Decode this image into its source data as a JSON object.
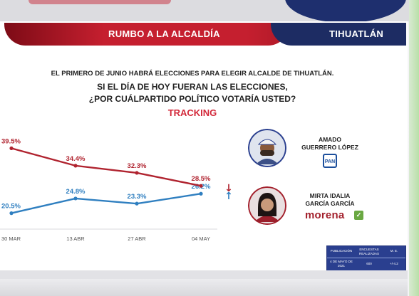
{
  "banner": {
    "left_label": "RUMBO A LA ALCALDÍA",
    "right_label": "TIHUATLÁN"
  },
  "header": {
    "line1": "EL PRIMERO DE JUNIO HABRÁ ELECCIONES PARA ELEGIR ALCALDE DE TIHUATLÁN.",
    "line2": "SI EL DÍA DE HOY FUERAN LAS ELECCIONES,",
    "line3": "¿POR CUÁLPARTIDO POLÍTICO VOTARÍA USTED?",
    "tracking": "TRACKING"
  },
  "chart_data": {
    "type": "line",
    "categories": [
      "30 MAR",
      "13 ABR",
      "27 ABR",
      "04 MAY"
    ],
    "series": [
      {
        "name": "AMADO GUERRERO LÓPEZ",
        "values": [
          20.5,
          24.8,
          23.3,
          26.2
        ],
        "labels": [
          "20.5%",
          "24.8%",
          "23.3%",
          "26.2%"
        ],
        "color": "#2f7fc0",
        "arrow": "↑"
      },
      {
        "name": "MIRTA IDALIA GARCÍA GARCÍA",
        "values": [
          39.5,
          34.4,
          32.3,
          28.5
        ],
        "labels": [
          "39.5%",
          "34.4%",
          "32.3%",
          "28.5%"
        ],
        "color": "#b0232f",
        "arrow": "↓"
      }
    ],
    "ylim": [
      15,
      45
    ],
    "grid": false,
    "xlabel": "",
    "ylabel": ""
  },
  "candidates": [
    {
      "name_line1": "AMADO",
      "name_line2": "GUERRERO LÓPEZ",
      "party": "PAN"
    },
    {
      "name_line1": "MIRTA IDALIA",
      "name_line2": "GARCÍA GARCÍA",
      "party": "morena"
    }
  ],
  "meta": {
    "headers": [
      "PUBLICACIÓN",
      "ENCUESTAS REALIZADAS",
      "M. E."
    ],
    "values": [
      "4 DE MAYO DE 2021",
      "600",
      "+/-4.2"
    ]
  }
}
